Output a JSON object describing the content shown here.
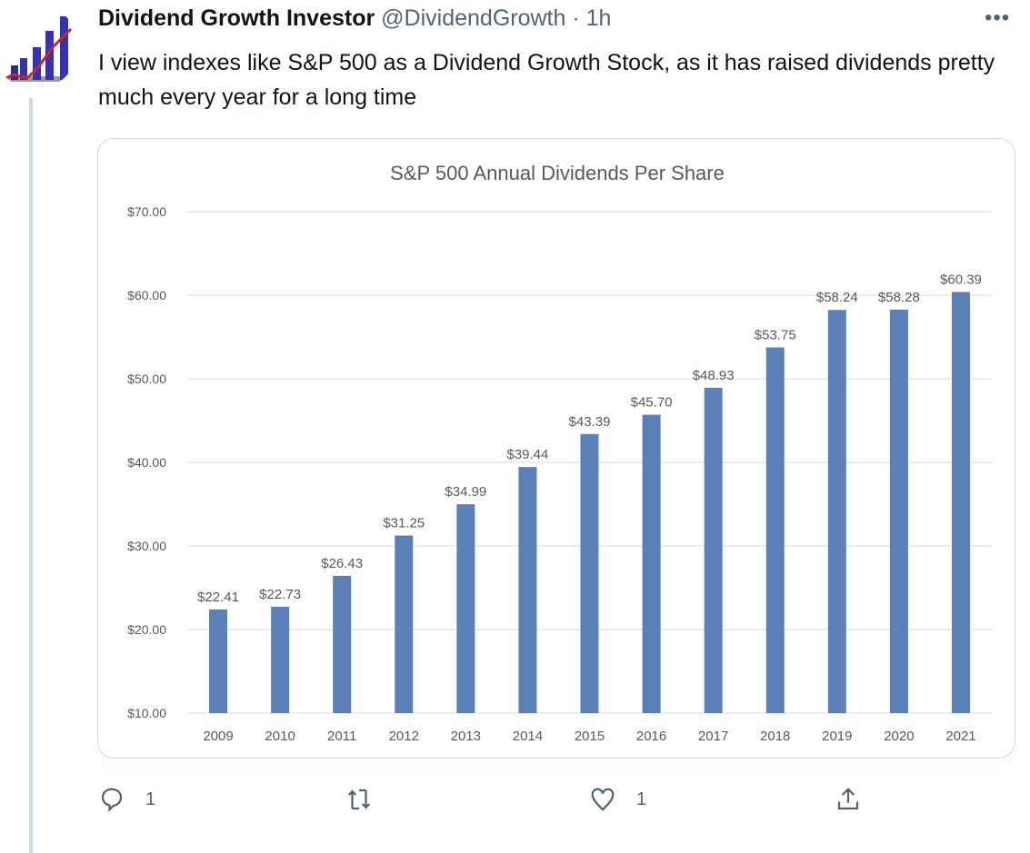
{
  "tweet": {
    "author_name": "Dividend Growth Investor",
    "handle": "@DividendGrowth",
    "separator": "·",
    "time": "1h",
    "more_icon": "more-dots-icon",
    "text": "I view indexes like S&P 500 as a Dividend Growth Stock, as it has raised dividends pretty much every year for a long time",
    "actions": {
      "reply_count": "1",
      "retweet_count": "",
      "like_count": "1"
    }
  },
  "colors": {
    "bar": "#5b80b8",
    "grid": "#d9d9d9",
    "muted": "#536471"
  },
  "chart_data": {
    "type": "bar",
    "title": "S&P 500 Annual Dividends Per Share",
    "categories": [
      "2009",
      "2010",
      "2011",
      "2012",
      "2013",
      "2014",
      "2015",
      "2016",
      "2017",
      "2018",
      "2019",
      "2020",
      "2021"
    ],
    "values": [
      22.41,
      22.73,
      26.43,
      31.25,
      34.99,
      39.44,
      43.39,
      45.7,
      48.93,
      53.75,
      58.24,
      58.28,
      60.39
    ],
    "data_labels": [
      "$22.41",
      "$22.73",
      "$26.43",
      "$31.25",
      "$34.99",
      "$39.44",
      "$43.39",
      "$45.70",
      "$48.93",
      "$53.75",
      "$58.24",
      "$58.28",
      "$60.39"
    ],
    "yticks": [
      10,
      20,
      30,
      40,
      50,
      60,
      70
    ],
    "ytick_labels": [
      "$10.00",
      "$20.00",
      "$30.00",
      "$40.00",
      "$50.00",
      "$60.00",
      "$70.00"
    ],
    "ylim": [
      10,
      70
    ],
    "xlabel": "",
    "ylabel": "",
    "grid": true,
    "legend": "none"
  }
}
